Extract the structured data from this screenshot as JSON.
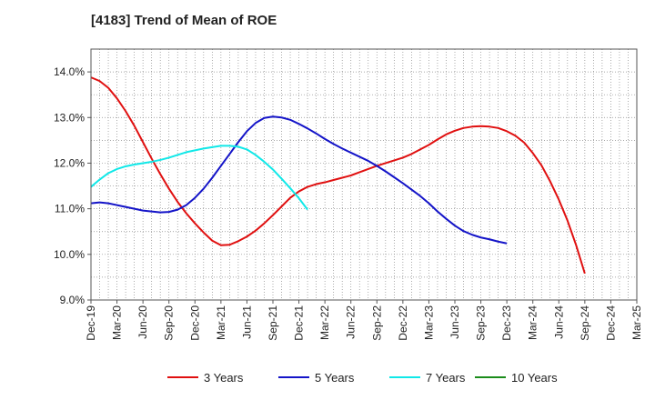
{
  "chart_data": {
    "type": "line",
    "title": "[4183]  Trend of Mean of ROE",
    "xlabel": "",
    "ylabel": "",
    "ylim": [
      9.0,
      14.5
    ],
    "y_ticks": [
      9.0,
      10.0,
      11.0,
      12.0,
      13.0,
      14.0
    ],
    "y_tick_labels": [
      "9.0%",
      "10.0%",
      "11.0%",
      "12.0%",
      "13.0%",
      "14.0%"
    ],
    "x_tick_labels": [
      "Dec-19",
      "Mar-20",
      "Jun-20",
      "Sep-20",
      "Dec-20",
      "Mar-21",
      "Jun-21",
      "Sep-21",
      "Dec-21",
      "Mar-22",
      "Jun-22",
      "Sep-22",
      "Dec-22",
      "Mar-23",
      "Jun-23",
      "Sep-23",
      "Dec-23",
      "Mar-24",
      "Jun-24",
      "Sep-24",
      "Dec-24",
      "Mar-25"
    ],
    "grid": true,
    "legend_position": "bottom",
    "series": [
      {
        "name": "3 Years",
        "color": "#e01010",
        "points": [
          [
            "Dec-19",
            13.88
          ],
          [
            "Jan-20",
            13.8
          ],
          [
            "Feb-20",
            13.65
          ],
          [
            "Mar-20",
            13.42
          ],
          [
            "Apr-20",
            13.14
          ],
          [
            "May-20",
            12.82
          ],
          [
            "Jun-20",
            12.46
          ],
          [
            "Jul-20",
            12.1
          ],
          [
            "Aug-20",
            11.76
          ],
          [
            "Sep-20",
            11.44
          ],
          [
            "Oct-20",
            11.15
          ],
          [
            "Nov-20",
            10.9
          ],
          [
            "Dec-20",
            10.68
          ],
          [
            "Jan-21",
            10.48
          ],
          [
            "Feb-21",
            10.3
          ],
          [
            "Mar-21",
            10.2
          ],
          [
            "Apr-21",
            10.21
          ],
          [
            "May-21",
            10.29
          ],
          [
            "Jun-21",
            10.39
          ],
          [
            "Jul-21",
            10.52
          ],
          [
            "Aug-21",
            10.68
          ],
          [
            "Sep-21",
            10.86
          ],
          [
            "Oct-21",
            11.05
          ],
          [
            "Nov-21",
            11.24
          ],
          [
            "Dec-21",
            11.38
          ],
          [
            "Jan-22",
            11.48
          ],
          [
            "Feb-22",
            11.54
          ],
          [
            "Mar-22",
            11.58
          ],
          [
            "Apr-22",
            11.63
          ],
          [
            "May-22",
            11.68
          ],
          [
            "Jun-22",
            11.73
          ],
          [
            "Jul-22",
            11.8
          ],
          [
            "Aug-22",
            11.87
          ],
          [
            "Sep-22",
            11.94
          ],
          [
            "Oct-22",
            12.0
          ],
          [
            "Nov-22",
            12.06
          ],
          [
            "Dec-22",
            12.12
          ],
          [
            "Jan-23",
            12.2
          ],
          [
            "Feb-23",
            12.3
          ],
          [
            "Mar-23",
            12.4
          ],
          [
            "Apr-23",
            12.52
          ],
          [
            "May-23",
            12.63
          ],
          [
            "Jun-23",
            12.71
          ],
          [
            "Jul-23",
            12.77
          ],
          [
            "Aug-23",
            12.8
          ],
          [
            "Sep-23",
            12.81
          ],
          [
            "Oct-23",
            12.8
          ],
          [
            "Nov-23",
            12.77
          ],
          [
            "Dec-23",
            12.7
          ],
          [
            "Jan-24",
            12.6
          ],
          [
            "Feb-24",
            12.45
          ],
          [
            "Mar-24",
            12.22
          ],
          [
            "Apr-24",
            11.95
          ],
          [
            "May-24",
            11.6
          ],
          [
            "Jun-24",
            11.2
          ],
          [
            "Jul-24",
            10.74
          ],
          [
            "Aug-24",
            10.2
          ],
          [
            "Sep-24",
            9.58
          ]
        ]
      },
      {
        "name": "5 Years",
        "color": "#1414c8",
        "points": [
          [
            "Dec-19",
            11.12
          ],
          [
            "Jan-20",
            11.14
          ],
          [
            "Feb-20",
            11.12
          ],
          [
            "Mar-20",
            11.08
          ],
          [
            "Apr-20",
            11.04
          ],
          [
            "May-20",
            11.0
          ],
          [
            "Jun-20",
            10.96
          ],
          [
            "Jul-20",
            10.94
          ],
          [
            "Aug-20",
            10.92
          ],
          [
            "Sep-20",
            10.93
          ],
          [
            "Oct-20",
            10.98
          ],
          [
            "Nov-20",
            11.08
          ],
          [
            "Dec-20",
            11.24
          ],
          [
            "Jan-21",
            11.44
          ],
          [
            "Feb-21",
            11.68
          ],
          [
            "Mar-21",
            11.94
          ],
          [
            "Apr-21",
            12.2
          ],
          [
            "May-21",
            12.46
          ],
          [
            "Jun-21",
            12.7
          ],
          [
            "Jul-21",
            12.88
          ],
          [
            "Aug-21",
            12.99
          ],
          [
            "Sep-21",
            13.02
          ],
          [
            "Oct-21",
            13.0
          ],
          [
            "Nov-21",
            12.95
          ],
          [
            "Dec-21",
            12.86
          ],
          [
            "Jan-22",
            12.76
          ],
          [
            "Feb-22",
            12.65
          ],
          [
            "Mar-22",
            12.53
          ],
          [
            "Apr-22",
            12.42
          ],
          [
            "May-22",
            12.32
          ],
          [
            "Jun-22",
            12.23
          ],
          [
            "Jul-22",
            12.14
          ],
          [
            "Aug-22",
            12.05
          ],
          [
            "Sep-22",
            11.94
          ],
          [
            "Oct-22",
            11.82
          ],
          [
            "Nov-22",
            11.69
          ],
          [
            "Dec-22",
            11.56
          ],
          [
            "Jan-23",
            11.42
          ],
          [
            "Feb-23",
            11.28
          ],
          [
            "Mar-23",
            11.12
          ],
          [
            "Apr-23",
            10.94
          ],
          [
            "May-23",
            10.78
          ],
          [
            "Jun-23",
            10.63
          ],
          [
            "Jul-23",
            10.51
          ],
          [
            "Aug-23",
            10.43
          ],
          [
            "Sep-23",
            10.37
          ],
          [
            "Oct-23",
            10.33
          ],
          [
            "Nov-23",
            10.28
          ],
          [
            "Dec-23",
            10.24
          ]
        ]
      },
      {
        "name": "7 Years",
        "color": "#10e8e8",
        "points": [
          [
            "Dec-19",
            11.48
          ],
          [
            "Jan-20",
            11.64
          ],
          [
            "Feb-20",
            11.78
          ],
          [
            "Mar-20",
            11.87
          ],
          [
            "Apr-20",
            11.93
          ],
          [
            "May-20",
            11.97
          ],
          [
            "Jun-20",
            12.0
          ],
          [
            "Jul-20",
            12.03
          ],
          [
            "Aug-20",
            12.07
          ],
          [
            "Sep-20",
            12.12
          ],
          [
            "Oct-20",
            12.18
          ],
          [
            "Nov-20",
            12.24
          ],
          [
            "Dec-20",
            12.28
          ],
          [
            "Jan-21",
            12.32
          ],
          [
            "Feb-21",
            12.35
          ],
          [
            "Mar-21",
            12.38
          ],
          [
            "Apr-21",
            12.38
          ],
          [
            "May-21",
            12.36
          ],
          [
            "Jun-21",
            12.3
          ],
          [
            "Jul-21",
            12.18
          ],
          [
            "Aug-21",
            12.03
          ],
          [
            "Sep-21",
            11.86
          ],
          [
            "Oct-21",
            11.66
          ],
          [
            "Nov-21",
            11.45
          ],
          [
            "Dec-21",
            11.23
          ],
          [
            "Jan-22",
            10.98
          ]
        ]
      },
      {
        "name": "10 Years",
        "color": "#1a8c1a",
        "points": []
      }
    ]
  }
}
